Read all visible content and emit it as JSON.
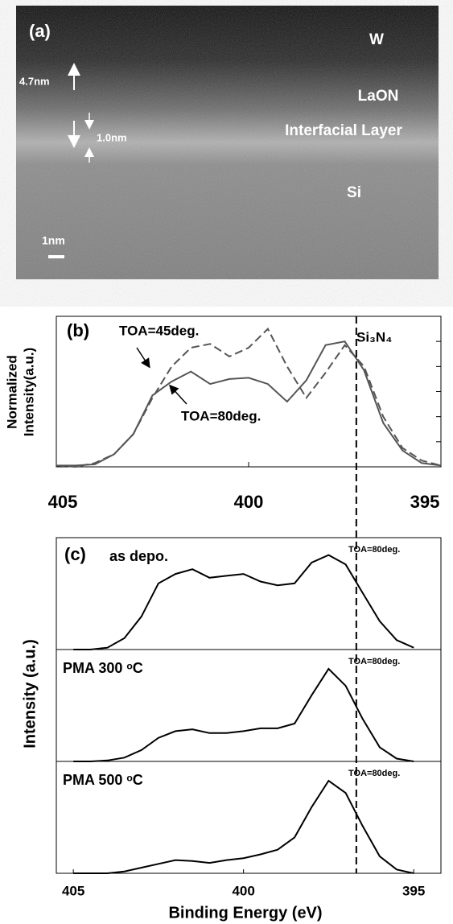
{
  "image": {
    "panel": "(a)",
    "layers": [
      "W",
      "LaON",
      "Interfacial Layer",
      "Si"
    ],
    "thickness": [
      "4.7nm",
      "1.0nm"
    ],
    "scale_bar": "1nm"
  },
  "chart_data": [
    {
      "type": "line",
      "panel": "(b)",
      "ylabel": [
        "Normalized",
        "Intensity(a.u.)"
      ],
      "annotations": [
        "TOA=45deg.",
        "TOA=80deg.",
        "Si₃N₄"
      ],
      "x": [
        405,
        404.5,
        404,
        403.5,
        403,
        402.5,
        402,
        401.5,
        401,
        400.5,
        400,
        399.5,
        399,
        398.5,
        398,
        397.5,
        397,
        396.5,
        396,
        395.5,
        395
      ],
      "xlim": [
        405,
        395
      ],
      "xticks": [
        405,
        400,
        395
      ],
      "ylim": [
        0,
        1.2
      ],
      "yticks": [
        0,
        0.2,
        0.4,
        0.6,
        0.8,
        1.0
      ],
      "vline": 397.2,
      "series": [
        {
          "style": "dashed",
          "color": "#555555",
          "values": [
            0.01,
            0.0,
            0.03,
            0.1,
            0.26,
            0.55,
            0.8,
            0.95,
            0.98,
            0.88,
            0.95,
            1.1,
            0.8,
            0.55,
            0.75,
            0.97,
            0.8,
            0.4,
            0.15,
            0.05,
            0.01
          ]
        },
        {
          "style": "solid",
          "color": "#555555",
          "values": [
            0.01,
            0.01,
            0.02,
            0.1,
            0.26,
            0.57,
            0.68,
            0.76,
            0.66,
            0.7,
            0.71,
            0.66,
            0.52,
            0.69,
            0.97,
            1.0,
            0.77,
            0.35,
            0.13,
            0.03,
            0.01
          ]
        }
      ]
    },
    {
      "type": "line",
      "panel": "(c)",
      "ylabel": "Intensity (a.u.)",
      "xlabel": "Binding Energy (eV)",
      "x": [
        405,
        404.5,
        404,
        403.5,
        403,
        402.5,
        402,
        401.5,
        401,
        400.5,
        400,
        399.5,
        399,
        398.5,
        398,
        397.5,
        397,
        396.5,
        396,
        395.5,
        395
      ],
      "xlim": [
        405.5,
        394.2
      ],
      "xticks": [
        405,
        400,
        395
      ],
      "ylim": [
        0,
        1.15
      ],
      "vline": 397.0,
      "series": [
        {
          "name": "as depo.",
          "annotation": "TOA=80deg.",
          "style": "solid",
          "color": "#000000",
          "values": [
            0,
            0,
            0.02,
            0.12,
            0.35,
            0.7,
            0.8,
            0.85,
            0.76,
            0.78,
            0.8,
            0.72,
            0.68,
            0.7,
            0.92,
            1.0,
            0.9,
            0.6,
            0.3,
            0.1,
            0.02
          ]
        },
        {
          "name": "PMA 300 ᵒC",
          "annotation": "TOA=80deg.",
          "style": "solid",
          "color": "#000000",
          "values": [
            0,
            0,
            0.01,
            0.04,
            0.12,
            0.25,
            0.32,
            0.34,
            0.3,
            0.3,
            0.32,
            0.35,
            0.35,
            0.4,
            0.7,
            0.98,
            0.8,
            0.45,
            0.15,
            0.03,
            0
          ]
        },
        {
          "name": "PMA 500 ᵒC",
          "annotation": "TOA=80deg.",
          "style": "solid",
          "color": "#000000",
          "values": [
            0,
            0,
            0,
            0.02,
            0.06,
            0.1,
            0.14,
            0.13,
            0.11,
            0.14,
            0.16,
            0.2,
            0.25,
            0.38,
            0.7,
            0.98,
            0.85,
            0.5,
            0.18,
            0.04,
            0
          ]
        }
      ]
    }
  ]
}
